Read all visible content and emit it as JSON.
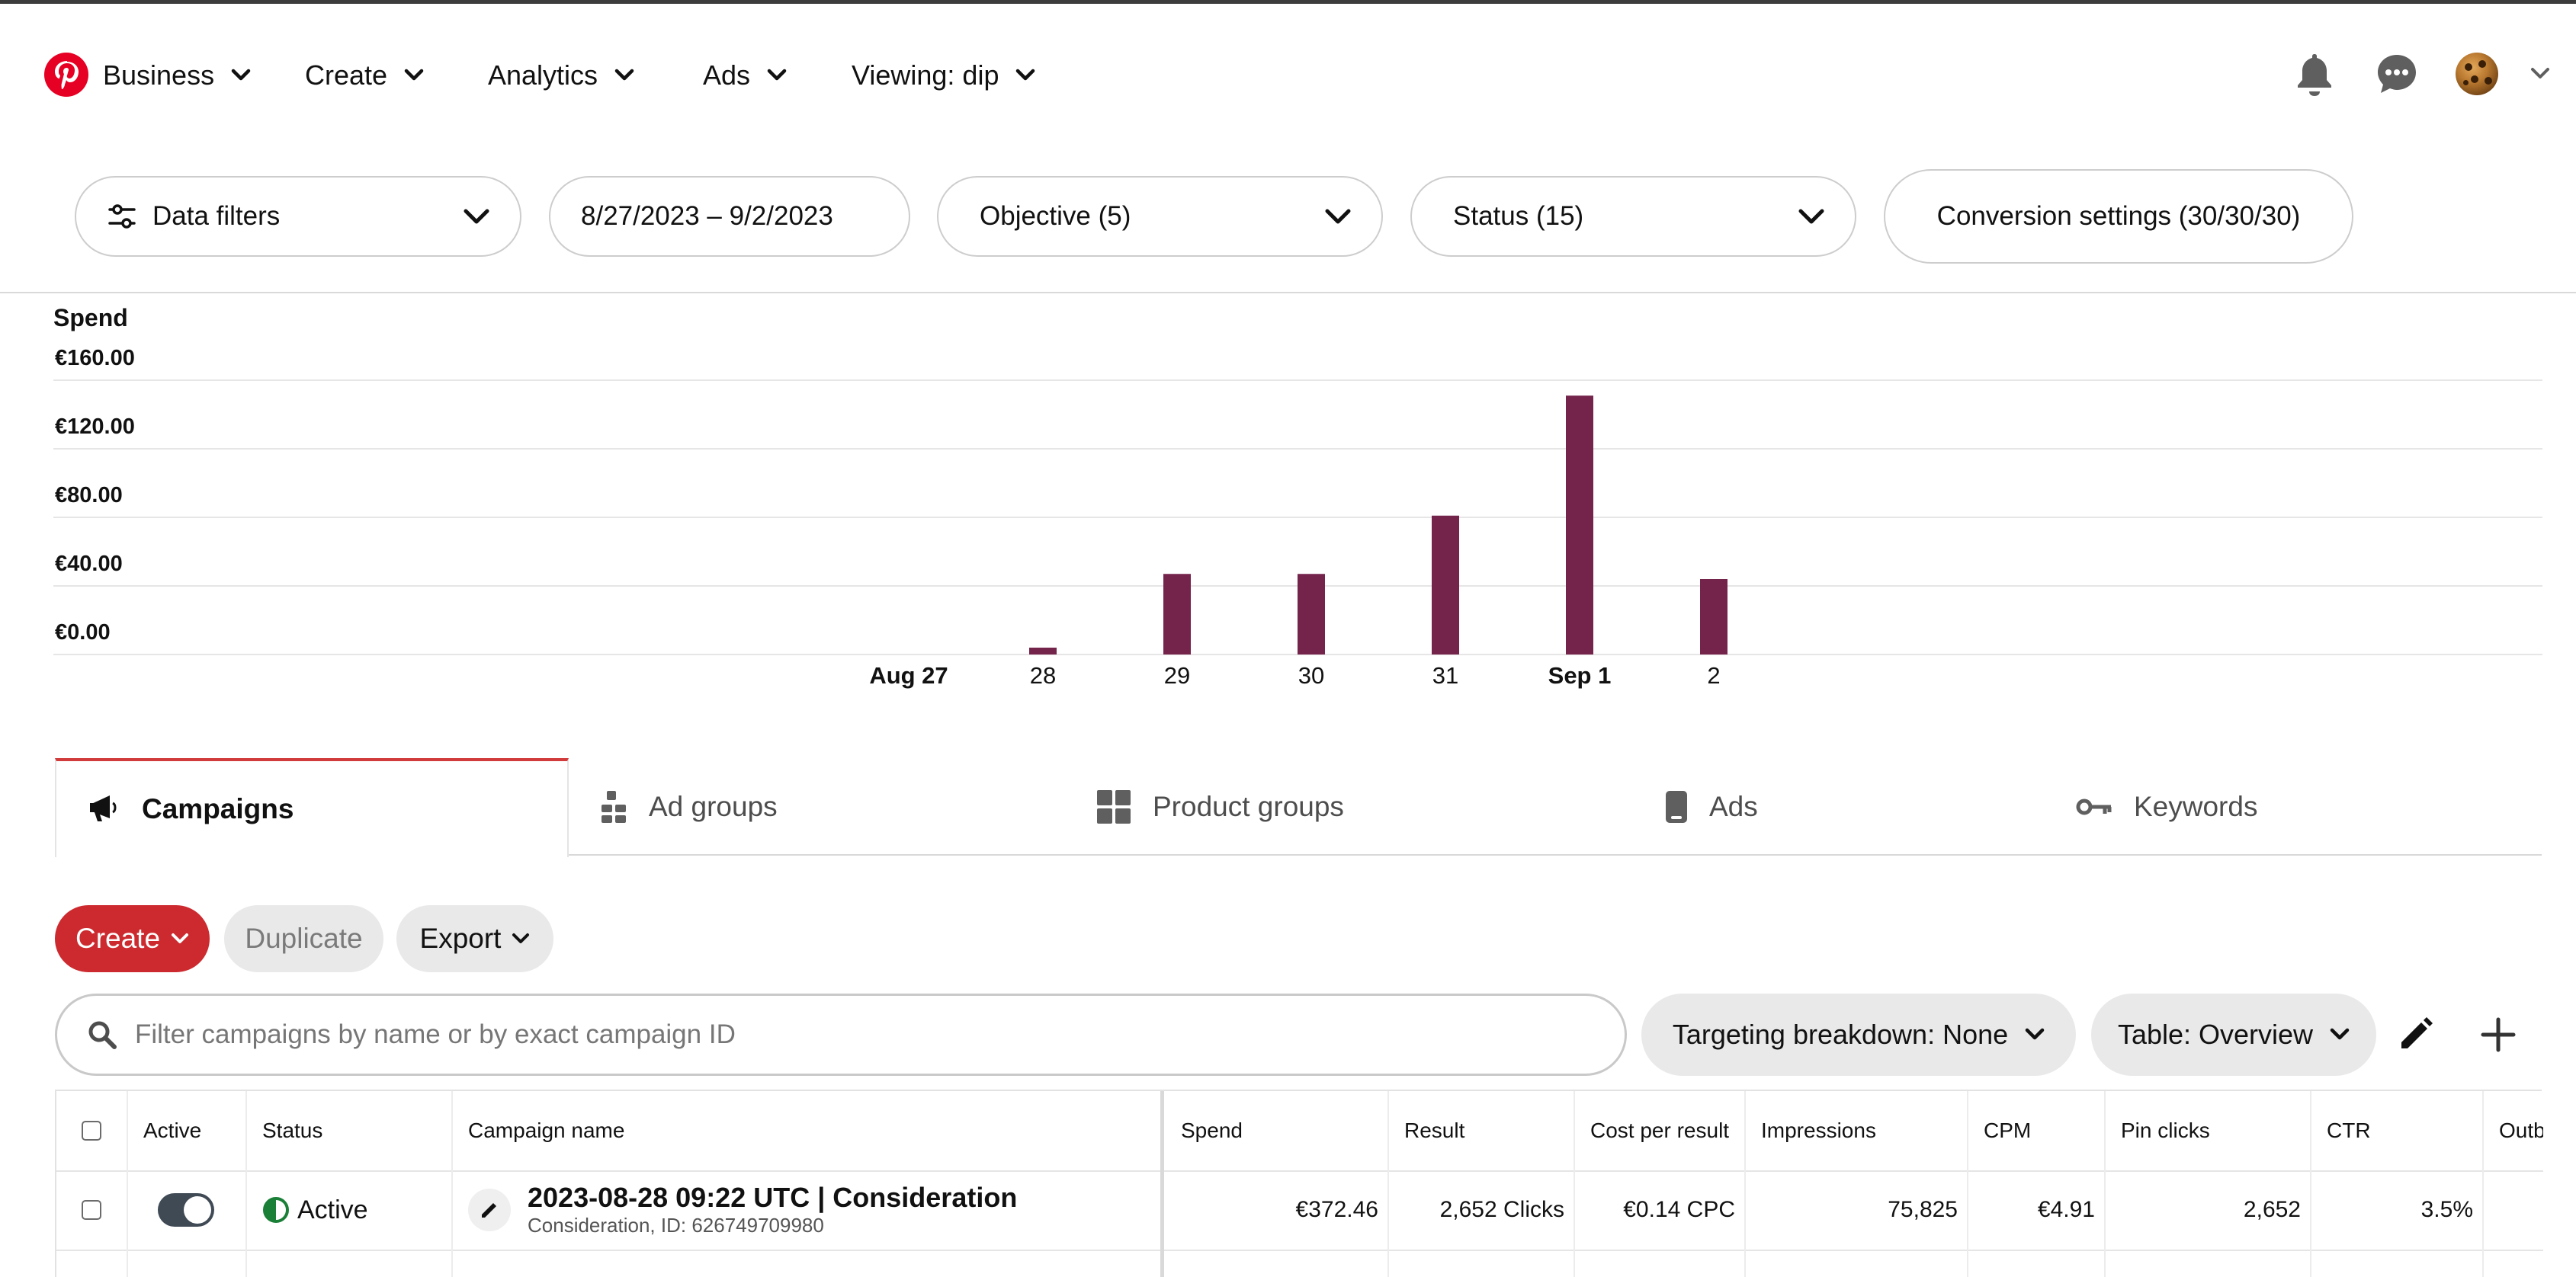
{
  "nav": {
    "business": "Business",
    "create": "Create",
    "analytics": "Analytics",
    "ads": "Ads",
    "viewing": "Viewing: dip"
  },
  "filters": {
    "data_filters": "Data filters",
    "date_range": "8/27/2023 – 9/2/2023",
    "objective": "Objective (5)",
    "status": "Status (15)",
    "conversion": "Conversion settings (30/30/30)"
  },
  "chart_data": {
    "type": "bar",
    "title": "Spend",
    "ylabel": "Spend",
    "ylim": [
      0,
      160
    ],
    "y_ticks": [
      "€0.00",
      "€40.00",
      "€80.00",
      "€120.00",
      "€160.00"
    ],
    "y_tick_values": [
      0,
      40,
      80,
      120,
      160
    ],
    "categories": [
      "Aug 27",
      "28",
      "29",
      "30",
      "31",
      "Sep 1",
      "2"
    ],
    "bold_categories": [
      "Aug 27",
      "Sep 1"
    ],
    "values": [
      0,
      4,
      47,
      47,
      81,
      151,
      44
    ],
    "bar_color": "#74234b",
    "grid": true
  },
  "tabs": [
    {
      "label": "Campaigns",
      "icon": "megaphone-icon",
      "active": true
    },
    {
      "label": "Ad groups",
      "icon": "ad-groups-icon",
      "active": false
    },
    {
      "label": "Product groups",
      "icon": "grid-icon",
      "active": false
    },
    {
      "label": "Ads",
      "icon": "phone-icon",
      "active": false
    },
    {
      "label": "Keywords",
      "icon": "key-icon",
      "active": false
    }
  ],
  "actions": {
    "create": "Create",
    "duplicate": "Duplicate",
    "export": "Export"
  },
  "search": {
    "placeholder": "Filter campaigns by name or by exact campaign ID"
  },
  "table_controls": {
    "targeting": "Targeting breakdown: None",
    "table_view": "Table: Overview"
  },
  "table": {
    "headers": {
      "active": "Active",
      "status": "Status",
      "campaign_name": "Campaign name",
      "spend": "Spend",
      "result": "Result",
      "cost_per_result": "Cost per result",
      "impressions": "Impressions",
      "cpm": "CPM",
      "pin_clicks": "Pin clicks",
      "ctr": "CTR",
      "outbound": "Outb"
    },
    "row": {
      "active": true,
      "status": "Active",
      "campaign_name": "2023-08-28 09:22 UTC | Consideration",
      "campaign_sub": "Consideration, ID: 626749709980",
      "spend": "€372.46",
      "result": "2,652 Clicks",
      "cost_per_result": "€0.14 CPC",
      "impressions": "75,825",
      "cpm": "€4.91",
      "pin_clicks": "2,652",
      "ctr": "3.5%"
    }
  },
  "colors": {
    "brand_red": "#e60023",
    "create_button": "#cc2a2f",
    "bar": "#74234b",
    "status_green": "#1a7f37"
  }
}
